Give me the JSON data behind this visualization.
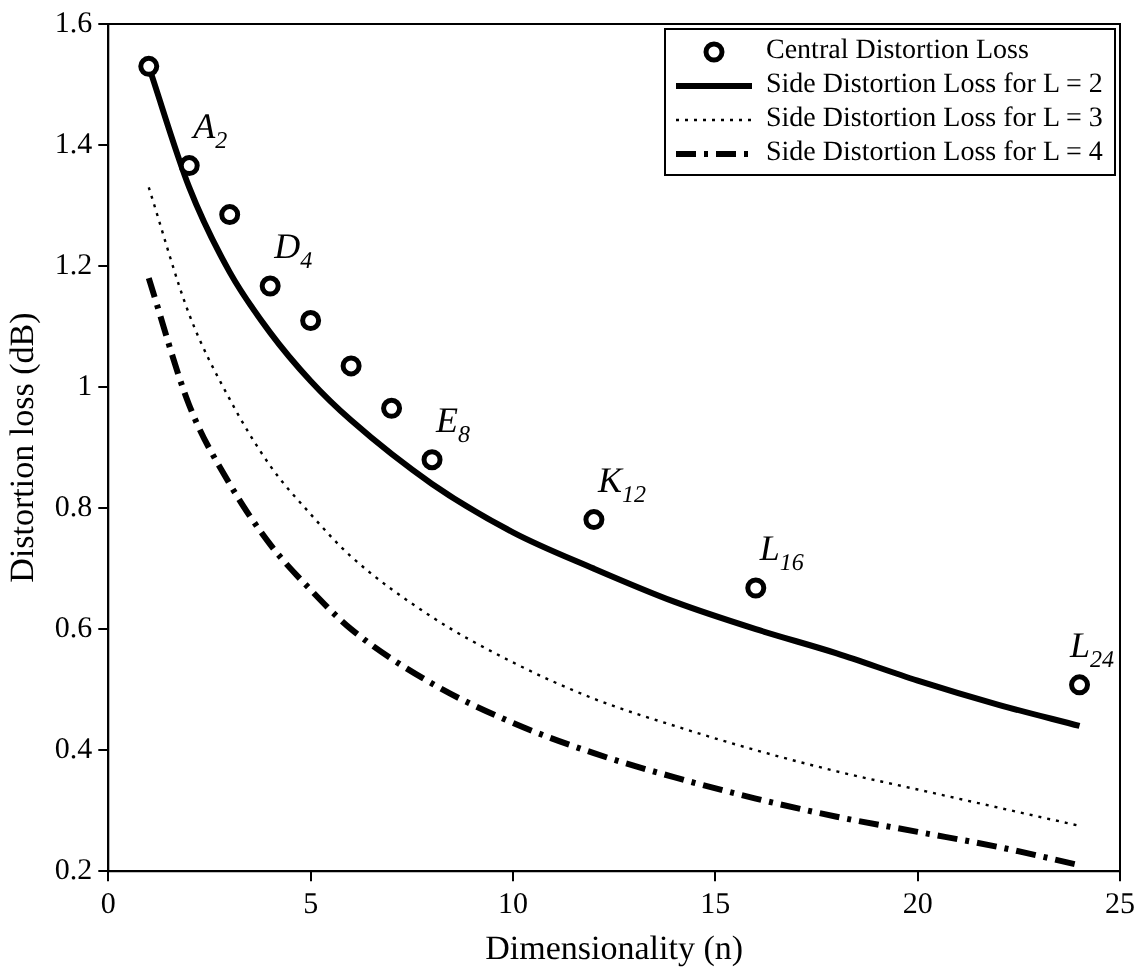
{
  "chart_data": {
    "type": "line",
    "xlabel": "Dimensionality (n)",
    "ylabel": "Distortion loss (dB)",
    "xlim": [
      0,
      25
    ],
    "xticks": [
      0,
      5,
      10,
      15,
      20,
      25
    ],
    "ylim": [
      0.2,
      1.6
    ],
    "yticks": [
      0.2,
      0.4,
      0.6,
      0.8,
      1,
      1.2,
      1.4,
      1.6
    ],
    "grid": false,
    "legend": "top right",
    "series": [
      {
        "name": "Central Distortion Loss",
        "type": "scatter",
        "marker": "circle",
        "color": "#000000",
        "x": [
          1,
          2,
          3,
          4,
          5,
          6,
          7,
          8,
          12,
          16,
          24
        ],
        "values": [
          1.53,
          1.366,
          1.285,
          1.167,
          1.11,
          1.035,
          0.965,
          0.88,
          0.781,
          0.668,
          0.508
        ]
      },
      {
        "name": "Side Distortion Loss for L = 2",
        "marker": "none",
        "line_style": "solid",
        "color": "#000000",
        "x": [
          1,
          2,
          3,
          4,
          5,
          6,
          8,
          10,
          12,
          14,
          16,
          18,
          20,
          22,
          24
        ],
        "values": [
          1.53,
          1.33,
          1.19,
          1.09,
          1.01,
          0.945,
          0.84,
          0.76,
          0.7,
          0.645,
          0.6,
          0.56,
          0.515,
          0.475,
          0.44
        ]
      },
      {
        "name": "Side Distortion Loss for L = 3",
        "marker": "none",
        "line_style": "dotted",
        "color": "#000000",
        "x": [
          1,
          2,
          3,
          4,
          5,
          6,
          8,
          10,
          12,
          14,
          16,
          18,
          20,
          22,
          24
        ],
        "values": [
          1.33,
          1.12,
          0.98,
          0.87,
          0.79,
          0.72,
          0.62,
          0.545,
          0.485,
          0.44,
          0.4,
          0.365,
          0.335,
          0.305,
          0.275
        ]
      },
      {
        "name": "Side Distortion Loss for L = 4",
        "marker": "none",
        "line_style": "dashed",
        "color": "#000000",
        "x": [
          1,
          2,
          3,
          4,
          5,
          6,
          8,
          10,
          12,
          14,
          16,
          18,
          20,
          22,
          24
        ],
        "values": [
          1.18,
          0.97,
          0.84,
          0.74,
          0.665,
          0.6,
          0.51,
          0.445,
          0.395,
          0.355,
          0.32,
          0.29,
          0.265,
          0.24,
          0.21
        ]
      }
    ],
    "annotations": [
      {
        "text": "A$_{2}$",
        "x": 2,
        "y": 1.366
      },
      {
        "text": "D$_{4}$",
        "x": 4,
        "y": 1.167
      },
      {
        "text": "E$_{8}$",
        "x": 8,
        "y": 0.88
      },
      {
        "text": "K$_{12}$",
        "x": 12,
        "y": 0.781
      },
      {
        "text": "L$_{16}$",
        "x": 16,
        "y": 0.668
      },
      {
        "text": "L$_{24}$",
        "x": 24,
        "y": 0.508
      }
    ]
  }
}
